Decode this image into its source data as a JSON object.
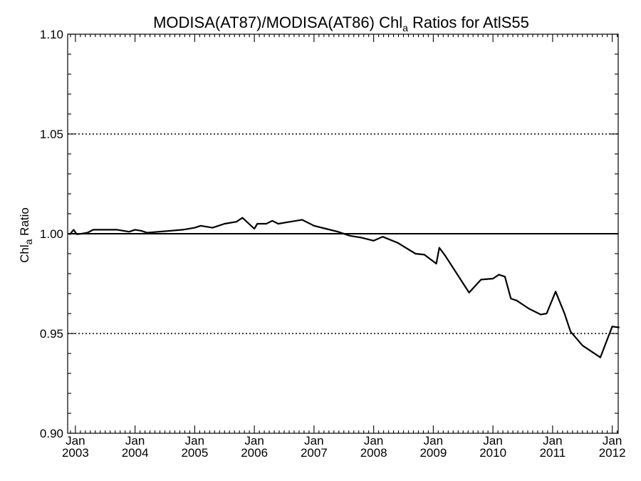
{
  "chart_data": {
    "type": "line",
    "title": {
      "prefix": "MODISA(AT87)/MODISA(AT86)  Chl",
      "subscript": "a",
      "suffix": " Ratios for AtlS55"
    },
    "ylabel": {
      "prefix": "Chl",
      "subscript": "a",
      "suffix": " Ratio"
    },
    "xlim": [
      2002.87,
      2012.1
    ],
    "ylim": [
      0.9,
      1.1
    ],
    "y_ticks": [
      "0.90",
      "0.95",
      "1.00",
      "1.05",
      "1.10"
    ],
    "x_ticks": [
      {
        "month": "Jan",
        "year": "2003"
      },
      {
        "month": "Jan",
        "year": "2004"
      },
      {
        "month": "Jan",
        "year": "2005"
      },
      {
        "month": "Jan",
        "year": "2006"
      },
      {
        "month": "Jan",
        "year": "2007"
      },
      {
        "month": "Jan",
        "year": "2008"
      },
      {
        "month": "Jan",
        "year": "2009"
      },
      {
        "month": "Jan",
        "year": "2010"
      },
      {
        "month": "Jan",
        "year": "2011"
      },
      {
        "month": "Jan",
        "year": "2012"
      }
    ],
    "reference_lines": [
      {
        "y": 1.0,
        "style": "solid"
      },
      {
        "y": 1.05,
        "style": "dotted"
      },
      {
        "y": 0.95,
        "style": "dotted"
      }
    ],
    "grid": false,
    "series": [
      {
        "x": [
          2002.9,
          2002.97,
          2003.02,
          2003.1,
          2003.2,
          2003.3,
          2003.4,
          2003.5,
          2003.6,
          2003.7,
          2003.8,
          2003.9,
          2004.0,
          2004.1,
          2004.2,
          2004.4,
          2004.6,
          2004.8,
          2005.0,
          2005.1,
          2005.3,
          2005.5,
          2005.7,
          2005.8,
          2006.0,
          2006.05,
          2006.15,
          2006.2,
          2006.3,
          2006.4,
          2006.6,
          2006.8,
          2007.0,
          2007.2,
          2007.4,
          2007.6,
          2007.8,
          2008.0,
          2008.15,
          2008.4,
          2008.7,
          2008.85,
          2009.05,
          2009.1,
          2009.2,
          2009.6,
          2009.8,
          2010.0,
          2010.1,
          2010.2,
          2010.3,
          2010.4,
          2010.6,
          2010.8,
          2010.9,
          2011.05,
          2011.2,
          2011.3,
          2011.5,
          2011.8,
          2012.0,
          2012.12
        ],
        "y": [
          0.9995,
          1.002,
          0.9998,
          1.0,
          1.0005,
          1.002,
          1.002,
          1.002,
          1.002,
          1.002,
          1.0015,
          1.001,
          1.002,
          1.0015,
          1.0005,
          1.001,
          1.0015,
          1.002,
          1.003,
          1.004,
          1.003,
          1.005,
          1.006,
          1.008,
          1.0025,
          1.005,
          1.005,
          1.005,
          1.0065,
          1.005,
          1.006,
          1.007,
          1.004,
          1.0025,
          1.001,
          0.999,
          0.998,
          0.9965,
          0.9985,
          0.9955,
          0.99,
          0.9895,
          0.985,
          0.993,
          0.989,
          0.9705,
          0.977,
          0.9775,
          0.9795,
          0.9785,
          0.9675,
          0.9665,
          0.9625,
          0.9595,
          0.96,
          0.971,
          0.96,
          0.951,
          0.944,
          0.938,
          0.9535,
          0.953
        ]
      }
    ]
  }
}
